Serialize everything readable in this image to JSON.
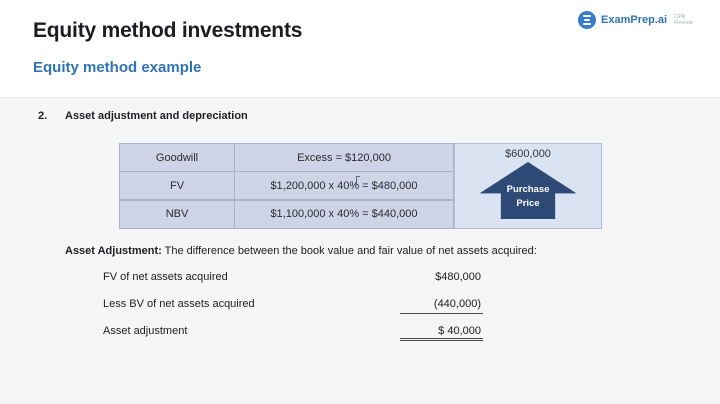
{
  "header": {
    "title": "Equity method investments",
    "subtitle": "Equity method example",
    "logo": {
      "brand": "ExamPrep.ai",
      "tagline_line1": "CPA",
      "tagline_line2": "Review"
    }
  },
  "content": {
    "section_number": "2.",
    "section_heading": "Asset adjustment and depreciation",
    "table": {
      "rows": [
        {
          "label": "Goodwill",
          "detail": "Excess = $120,000"
        },
        {
          "label": "FV",
          "detail": "$1,200,000 x 40% = $480,000"
        },
        {
          "label": "NBV",
          "detail": "$1,100,000 x 40% = $440,000"
        }
      ],
      "purchase_price_value": "$600,000",
      "arrow_label_line1": "Purchase",
      "arrow_label_line2": "Price"
    },
    "definition": {
      "term": "Asset Adjustment:",
      "text": "The difference between the book value and fair value of net assets acquired:"
    },
    "line_items": [
      {
        "label": "FV of net assets acquired",
        "value": "$480,000",
        "underline": "none"
      },
      {
        "label": "Less BV of net assets acquired",
        "value": "(440,000)",
        "underline": "single"
      },
      {
        "label": "Asset adjustment",
        "value": "$ 40,000",
        "underline": "double"
      }
    ]
  },
  "colors": {
    "accent_blue": "#2e74b5",
    "title_text": "#1d1d21",
    "table_cell_bg": "#ccd4e6",
    "table_border": "#a9b3c7",
    "panel_bg": "#dae3f2",
    "arrow_fill": "#2d4a76",
    "content_bg": "#f5f5f7"
  }
}
